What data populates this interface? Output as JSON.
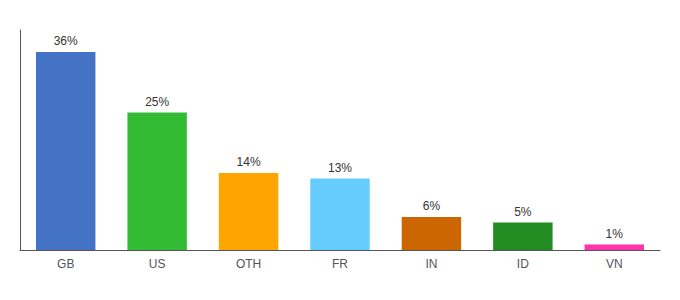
{
  "chart_data": {
    "type": "bar",
    "categories": [
      "GB",
      "US",
      "OTH",
      "FR",
      "IN",
      "ID",
      "VN"
    ],
    "values": [
      36,
      25,
      14,
      13,
      6,
      5,
      1
    ],
    "value_labels": [
      "36%",
      "25%",
      "14%",
      "13%",
      "6%",
      "5%",
      "1%"
    ],
    "colors": [
      "#4472C4",
      "#33BB33",
      "#FFA500",
      "#66CCFF",
      "#CC6600",
      "#228B22",
      "#FF33AA"
    ],
    "ylim": [
      0,
      40
    ],
    "data_labels": true,
    "tick_labels": "x",
    "grid": false
  }
}
